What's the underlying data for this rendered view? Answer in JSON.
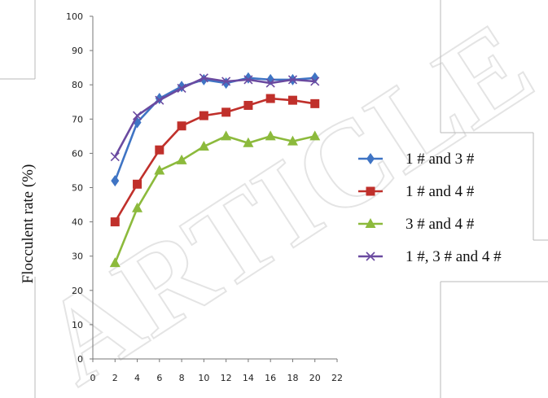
{
  "chart_data": {
    "type": "line",
    "ylabel": "Flocculent rate (%)",
    "xlabel": "",
    "xlim": [
      0,
      22
    ],
    "ylim": [
      0,
      100
    ],
    "x_ticks": [
      "0",
      "2",
      "4",
      "6",
      "8",
      "10",
      "12",
      "14",
      "16",
      "18",
      "20",
      "22"
    ],
    "y_ticks": [
      "0",
      "10",
      "20",
      "30",
      "40",
      "50",
      "60",
      "70",
      "80",
      "90",
      "100"
    ],
    "grid": false,
    "legend_position": "right",
    "series": [
      {
        "name": "1 # and 3 #",
        "color": "#3f74c4",
        "marker": "diamond",
        "x": [
          2,
          4,
          6,
          8,
          10,
          12,
          14,
          16,
          18,
          20
        ],
        "y": [
          52,
          69,
          76,
          79.5,
          81.5,
          80.5,
          82,
          81.5,
          81.5,
          82
        ]
      },
      {
        "name": "1 # and 4 #",
        "color": "#c0302b",
        "marker": "square",
        "x": [
          2,
          4,
          6,
          8,
          10,
          12,
          14,
          16,
          18,
          20
        ],
        "y": [
          40,
          51,
          61,
          68,
          71,
          72,
          74,
          76,
          75.5,
          74.5
        ]
      },
      {
        "name": "3 # and 4 #",
        "color": "#8cba3c",
        "marker": "triangle",
        "x": [
          2,
          4,
          6,
          8,
          10,
          12,
          14,
          16,
          18,
          20
        ],
        "y": [
          28,
          44,
          55,
          58,
          62,
          65,
          63,
          65,
          63.5,
          65
        ]
      },
      {
        "name": "1 #, 3 # and 4 #",
        "color": "#6a4aa0",
        "marker": "x",
        "x": [
          2,
          4,
          6,
          8,
          10,
          12,
          14,
          16,
          18,
          20
        ],
        "y": [
          59,
          71,
          75.5,
          79,
          82,
          81,
          81.5,
          80.5,
          81.5,
          81
        ]
      }
    ]
  },
  "watermark": "ARTICLE"
}
